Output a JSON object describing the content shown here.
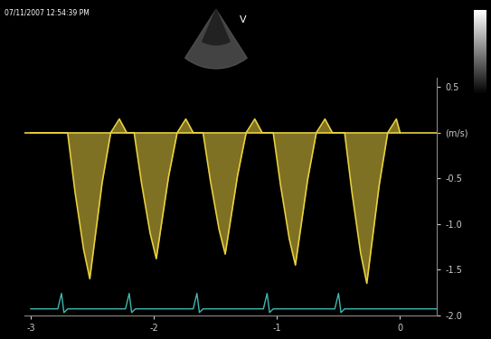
{
  "chart_data": {
    "type": "line",
    "annotations": [
      "07/11/2007 12:54:39 PM",
      "V"
    ],
    "xlim": [
      -3.05,
      0.3
    ],
    "xticks": [
      -3,
      -2,
      -1,
      0
    ],
    "ylim": [
      -2.0,
      0.6
    ],
    "yticks": [
      0.5,
      {
        "value": 0,
        "label": "(m/s)"
      },
      -0.5,
      -1.0,
      -1.5,
      -2.0
    ],
    "grid": false,
    "series": [
      {
        "type": "area",
        "color": "#e8d040",
        "x": [
          -3.0,
          -2.7,
          -2.64,
          -2.57,
          -2.52,
          -2.42,
          -2.35,
          -2.28,
          -2.22,
          -2.16,
          -2.1,
          -2.03,
          -1.98,
          -1.88,
          -1.81,
          -1.74,
          -1.68,
          -1.6,
          -1.54,
          -1.47,
          -1.42,
          -1.32,
          -1.25,
          -1.18,
          -1.12,
          -1.03,
          -0.97,
          -0.9,
          -0.85,
          -0.75,
          -0.68,
          -0.61,
          -0.55,
          -0.45,
          -0.39,
          -0.32,
          -0.27,
          -0.17,
          -0.1,
          -0.03,
          0.0
        ],
        "values": [
          0,
          0,
          -0.65,
          -1.28,
          -1.6,
          -0.55,
          0,
          0.15,
          0,
          0,
          -0.55,
          -1.1,
          -1.38,
          -0.48,
          0,
          0.15,
          0,
          0,
          -0.53,
          -1.06,
          -1.33,
          -0.47,
          0,
          0.15,
          0,
          0,
          -0.58,
          -1.16,
          -1.45,
          -0.51,
          0,
          0.15,
          0,
          0,
          -0.66,
          -1.32,
          -1.65,
          -0.58,
          0,
          0.15,
          0
        ]
      },
      {
        "type": "line",
        "color": "#3fb8b0",
        "x": [
          -3.0,
          -2.78,
          -2.75,
          -2.73,
          -2.7,
          -2.23,
          -2.2,
          -2.18,
          -2.15,
          -1.68,
          -1.65,
          -1.63,
          -1.6,
          -1.11,
          -1.08,
          -1.06,
          -1.03,
          -0.53,
          -0.5,
          -0.48,
          -0.45,
          0.3
        ],
        "values": [
          -1.93,
          -1.93,
          -1.76,
          -1.97,
          -1.93,
          -1.93,
          -1.76,
          -1.97,
          -1.93,
          -1.93,
          -1.76,
          -1.97,
          -1.93,
          -1.93,
          -1.76,
          -1.97,
          -1.93,
          -1.93,
          -1.76,
          -1.97,
          -1.93,
          -1.93
        ]
      }
    ]
  }
}
